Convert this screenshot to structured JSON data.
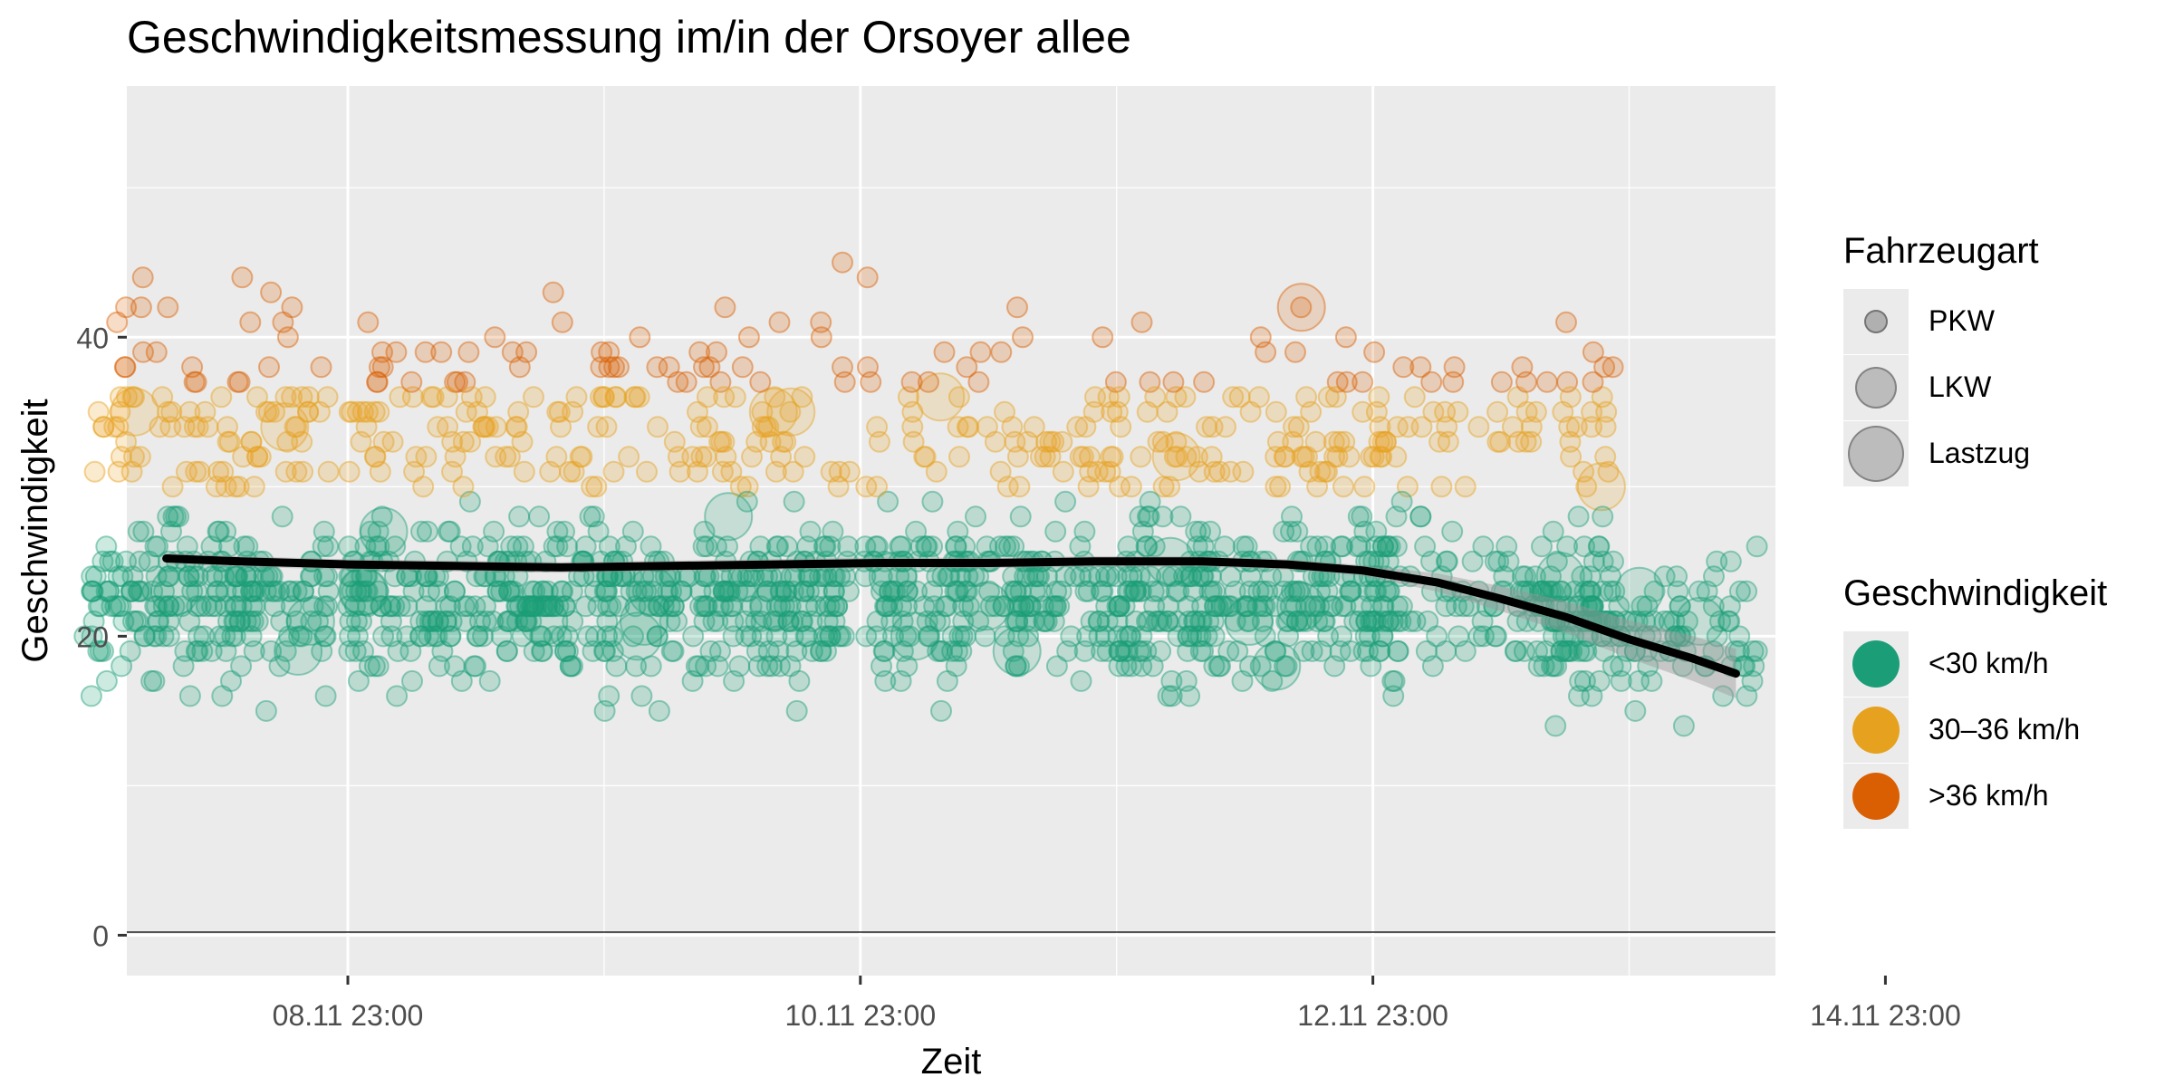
{
  "chart_data": {
    "type": "scatter",
    "title": "Geschwindigkeitsmessung im/in der Orsoyer allee",
    "xlabel": "Zeit",
    "ylabel": "Geschwindigkeit",
    "x_ticks": [
      "08.11 23:00",
      "10.11 23:00",
      "12.11 23:00",
      "14.11 23:00"
    ],
    "y_ticks": [
      0,
      20,
      40
    ],
    "ylim": [
      -2.7,
      56.8
    ],
    "xlim_hours": [
      -20.7,
      133.7
    ],
    "grid": true,
    "legend_placement": "right",
    "size_legend": {
      "title": "Fahrzeugart",
      "entries": [
        {
          "label": "PKW",
          "size": "small"
        },
        {
          "label": "LKW",
          "size": "medium"
        },
        {
          "label": "Lastzug",
          "size": "large"
        }
      ]
    },
    "color_legend": {
      "title": "Geschwindigkeit",
      "entries": [
        {
          "label": "<30 km/h",
          "color": "#1b9e77"
        },
        {
          "label": "30–36 km/h",
          "color": "#e6a11f"
        },
        {
          "label": ">36 km/h",
          "color": "#d95f02"
        }
      ]
    },
    "clusters": [
      {
        "center_hours": -13.3,
        "half_width_hours": 11.5,
        "count": 300
      },
      {
        "center_hours": 12.5,
        "half_width_hours": 12.5,
        "count": 330
      },
      {
        "center_hours": 35.5,
        "half_width_hours": 11.5,
        "count": 300
      },
      {
        "center_hours": 60.3,
        "half_width_hours": 12,
        "count": 280
      },
      {
        "center_hours": 84.5,
        "half_width_hours": 12.5,
        "count": 320
      },
      {
        "center_hours": 106.8,
        "half_width_hours": 12,
        "count": 230
      },
      {
        "center_hours": 118.5,
        "half_width_hours": 7,
        "count": 90
      },
      {
        "center_hours": 129,
        "half_width_hours": 3,
        "count": 30
      }
    ],
    "smooth_line": {
      "x_hours": [
        -17,
        -10,
        0,
        10,
        20,
        30,
        40,
        50,
        60,
        70,
        80,
        88,
        95,
        102,
        108,
        114,
        120,
        126,
        130
      ],
      "y": [
        25.2,
        25.0,
        24.8,
        24.7,
        24.6,
        24.7,
        24.8,
        24.9,
        24.9,
        25.0,
        25.0,
        24.8,
        24.4,
        23.6,
        22.5,
        21.3,
        19.8,
        18.5,
        17.5
      ]
    }
  }
}
